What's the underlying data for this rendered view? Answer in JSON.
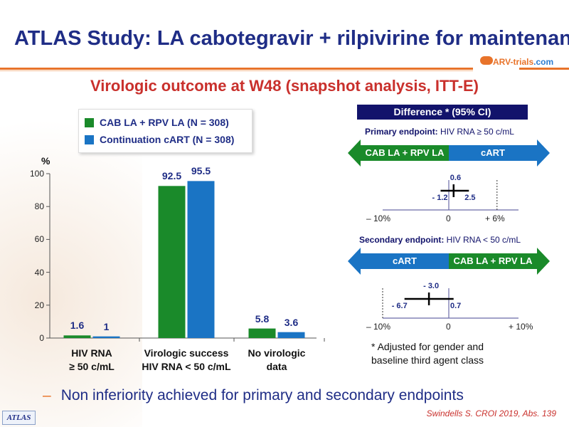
{
  "header": {
    "title": "ATLAS Study: LA cabotegravir + rilpivirine for maintenance",
    "logo_text": "ARV-trials",
    "logo_suffix": ".com"
  },
  "subtitle": "Virologic outcome at W48 (snapshot analysis, ITT-E)",
  "chart_data": [
    {
      "type": "bar",
      "ylabel": "%",
      "ylim": [
        0,
        100
      ],
      "yticks": [
        0,
        20,
        40,
        60,
        80,
        100
      ],
      "categories": [
        [
          "HIV RNA",
          "≥ 50 c/mL"
        ],
        [
          "Virologic success",
          "HIV RNA < 50 c/mL"
        ],
        [
          "No virologic",
          "data"
        ]
      ],
      "series": [
        {
          "name": "CAB LA + RPV LA (N = 308)",
          "color": "#1a8a2a",
          "values": [
            1.6,
            92.5,
            5.8
          ]
        },
        {
          "name": "Continuation  cART (N = 308)",
          "color": "#1a74c4",
          "values": [
            1.0,
            95.5,
            3.6
          ]
        }
      ],
      "legend_position": "top"
    },
    {
      "type": "forest",
      "title": "Difference * (95% CI)",
      "endpoints": [
        {
          "label_bold": "Primary endpoint:",
          "label": " HIV  RNA ≥ 50 c/mL",
          "left_arrow": "CAB LA + RPV LA",
          "left_color": "#1a8a2a",
          "right_arrow": "cART",
          "right_color": "#1a74c4",
          "estimate": 0.6,
          "ci": [
            -1.2,
            2.5
          ],
          "estimate_label": "0.6",
          "ci_low_label": "- 1.2",
          "ci_high_label": "2.5",
          "margin": 6,
          "axis_labels": [
            "– 10%",
            "0",
            "+ 6%"
          ]
        },
        {
          "label_bold": "Secondary endpoint:",
          "label": " HIV  RNA < 50 c/mL",
          "left_arrow": "cART",
          "left_color": "#1a74c4",
          "right_arrow": "CAB LA + RPV LA",
          "right_color": "#1a8a2a",
          "estimate": -3.0,
          "ci": [
            -6.7,
            0.7
          ],
          "estimate_label": "- 3.0",
          "ci_low_label": "- 6.7",
          "ci_high_label": "0.7",
          "margin": -10,
          "axis_labels": [
            "– 10%",
            "0",
            "+ 10%"
          ]
        }
      ],
      "footnote": [
        "* Adjusted for gender and",
        "baseline third agent class"
      ]
    }
  ],
  "bullet": "Non inferiority achieved for primary and secondary endpoints",
  "citation": "Swindells S. CROI 2019, Abs. 139",
  "badge": "ATLAS"
}
